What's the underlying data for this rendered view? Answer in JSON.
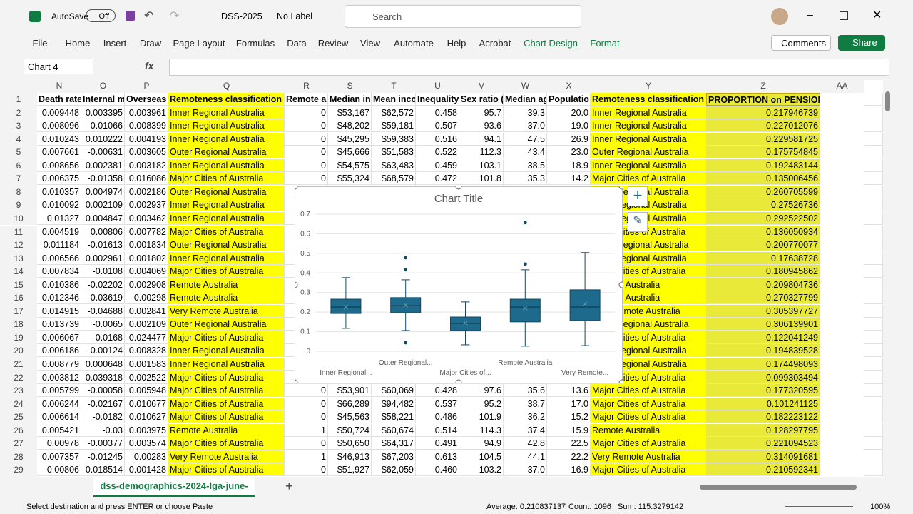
{
  "titlebar": {
    "autosave": "AutoSave",
    "toggle": "Off",
    "filename": "DSS-2025",
    "label": "No Label",
    "search": "Search"
  },
  "ribbon": {
    "tabs": [
      "File",
      "Home",
      "Insert",
      "Draw",
      "Page Layout",
      "Formulas",
      "Data",
      "Review",
      "View",
      "Automate",
      "Help",
      "Acrobat",
      "Chart Design",
      "Format"
    ],
    "comments": "Comments",
    "share": "Share"
  },
  "formula_bar": {
    "name_box": "Chart 4",
    "fx": "fx"
  },
  "grid": {
    "columns": [
      "N",
      "O",
      "P",
      "Q",
      "R",
      "S",
      "T",
      "U",
      "V",
      "W",
      "X",
      "Y",
      "Z",
      "AA"
    ],
    "rows": [
      [
        "1",
        "Death rate",
        "Internal m",
        "Overseas m",
        "Remoteness classification",
        "Remote ar",
        "Median in",
        "Mean inco",
        "Inequality",
        "Sex ratio (",
        "Median ag",
        "Populatio",
        "Remoteness classification",
        "PROPORTION on PENSIONS"
      ],
      [
        "2",
        "0.009448",
        "0.003395",
        "0.003961",
        "Inner Regional Australia",
        "0",
        "$53,167",
        "$62,572",
        "0.458",
        "95.7",
        "39.3",
        "20.0",
        "Inner Regional Australia",
        "0.217946739"
      ],
      [
        "3",
        "0.008096",
        "-0.01066",
        "0.008399",
        "Inner Regional Australia",
        "0",
        "$48,202",
        "$59,181",
        "0.507",
        "93.6",
        "37.0",
        "19.0",
        "Inner Regional Australia",
        "0.227012076"
      ],
      [
        "4",
        "0.010243",
        "0.010222",
        "0.004193",
        "Inner Regional Australia",
        "0",
        "$45,295",
        "$59,383",
        "0.516",
        "94.1",
        "47.5",
        "26.9",
        "Inner Regional Australia",
        "0.229581725"
      ],
      [
        "5",
        "0.007661",
        "-0.00631",
        "0.003605",
        "Outer Regional Australia",
        "0",
        "$45,666",
        "$51,583",
        "0.522",
        "112.3",
        "43.4",
        "23.0",
        "Outer Regional Australia",
        "0.175754845"
      ],
      [
        "6",
        "0.008656",
        "0.002381",
        "0.003182",
        "Inner Regional Australia",
        "0",
        "$54,575",
        "$63,483",
        "0.459",
        "103.1",
        "38.5",
        "18.9",
        "Inner Regional Australia",
        "0.192483144"
      ],
      [
        "7",
        "0.006375",
        "-0.01358",
        "0.016086",
        "Major Cities of Australia",
        "0",
        "$55,324",
        "$68,579",
        "0.472",
        "101.8",
        "35.3",
        "14.2",
        "Major Cities of Australia",
        "0.135006456"
      ],
      [
        "8",
        "0.010357",
        "0.004974",
        "0.002186",
        "Outer Regional Australia",
        null,
        null,
        null,
        null,
        null,
        null,
        null,
        "Outer Regional Australia",
        "0.260705599"
      ],
      [
        "9",
        "0.010092",
        "0.002109",
        "0.002937",
        "Inner Regional Australia",
        null,
        null,
        null,
        null,
        null,
        null,
        null,
        "Inner Regional Australia",
        "0.27526736"
      ],
      [
        "10",
        "0.01327",
        "0.004847",
        "0.003462",
        "Inner Regional Australia",
        null,
        null,
        null,
        null,
        null,
        null,
        null,
        "Inner Regional Australia",
        "0.292522502"
      ],
      [
        "11",
        "0.004519",
        "0.00806",
        "0.007782",
        "Major Cities of Australia",
        null,
        null,
        null,
        null,
        null,
        null,
        null,
        "Major Cities of Australia",
        "0.136050934"
      ],
      [
        "12",
        "0.011184",
        "-0.01613",
        "0.001834",
        "Outer Regional Australia",
        null,
        null,
        null,
        null,
        null,
        null,
        null,
        "Outer Regional Australia",
        "0.200770077"
      ],
      [
        "13",
        "0.006566",
        "0.002961",
        "0.001802",
        "Inner Regional Australia",
        null,
        null,
        null,
        null,
        null,
        null,
        null,
        "Inner Regional Australia",
        "0.17638728"
      ],
      [
        "14",
        "0.007834",
        "-0.0108",
        "0.004069",
        "Major Cities of Australia",
        null,
        null,
        null,
        null,
        null,
        null,
        null,
        "Major Cities of Australia",
        "0.180945862"
      ],
      [
        "15",
        "0.010386",
        "-0.02202",
        "0.002908",
        "Remote Australia",
        null,
        null,
        null,
        null,
        null,
        null,
        null,
        "Remote Australia",
        "0.209804736"
      ],
      [
        "16",
        "0.012346",
        "-0.03619",
        "0.00298",
        "Remote Australia",
        null,
        null,
        null,
        null,
        null,
        null,
        null,
        "Remote Australia",
        "0.270327799"
      ],
      [
        "17",
        "0.014915",
        "-0.04688",
        "0.002841",
        "Very Remote Australia",
        null,
        null,
        null,
        null,
        null,
        null,
        null,
        "Very Remote Australia",
        "0.305397727"
      ],
      [
        "18",
        "0.013739",
        "-0.0065",
        "0.002109",
        "Outer Regional Australia",
        null,
        null,
        null,
        null,
        null,
        null,
        null,
        "Outer Regional Australia",
        "0.306139901"
      ],
      [
        "19",
        "0.006067",
        "-0.0168",
        "0.024477",
        "Major Cities of Australia",
        null,
        null,
        null,
        null,
        null,
        null,
        null,
        "Major Cities of Australia",
        "0.122041249"
      ],
      [
        "20",
        "0.006186",
        "-0.00124",
        "0.008328",
        "Inner Regional Australia",
        null,
        null,
        null,
        null,
        null,
        null,
        null,
        "Inner Regional Australia",
        "0.194839528"
      ],
      [
        "21",
        "0.008779",
        "0.000648",
        "0.001583",
        "Inner Regional Australia",
        null,
        null,
        null,
        null,
        null,
        null,
        null,
        "Inner Regional Australia",
        "0.174498093"
      ],
      [
        "22",
        "0.003812",
        "0.039318",
        "0.002522",
        "Major Cities of Australia",
        null,
        null,
        null,
        null,
        null,
        null,
        null,
        "Major Cities of Australia",
        "0.099303494"
      ],
      [
        "23",
        "0.005799",
        "-0.00058",
        "0.005948",
        "Major Cities of Australia",
        "0",
        "$53,901",
        "$60,069",
        "0.428",
        "97.6",
        "35.6",
        "13.6",
        "Major Cities of Australia",
        "0.177320595"
      ],
      [
        "24",
        "0.006244",
        "-0.02167",
        "0.010677",
        "Major Cities of Australia",
        "0",
        "$66,289",
        "$94,482",
        "0.537",
        "95.2",
        "38.7",
        "17.0",
        "Major Cities of Australia",
        "0.101241125"
      ],
      [
        "25",
        "0.006614",
        "-0.0182",
        "0.010627",
        "Major Cities of Australia",
        "0",
        "$45,563",
        "$58,221",
        "0.486",
        "101.9",
        "36.2",
        "15.2",
        "Major Cities of Australia",
        "0.182223122"
      ],
      [
        "26",
        "0.005421",
        "-0.03",
        "0.003975",
        "Remote Australia",
        "1",
        "$50,724",
        "$60,674",
        "0.514",
        "114.3",
        "37.4",
        "15.9",
        "Remote Australia",
        "0.128297795"
      ],
      [
        "27",
        "0.00978",
        "-0.00377",
        "0.003574",
        "Major Cities of Australia",
        "0",
        "$50,650",
        "$64,317",
        "0.491",
        "94.9",
        "42.8",
        "22.5",
        "Major Cities of Australia",
        "0.221094523"
      ],
      [
        "28",
        "0.007357",
        "-0.01245",
        "0.00283",
        "Very Remote Australia",
        "1",
        "$46,913",
        "$67,203",
        "0.613",
        "104.5",
        "44.1",
        "22.2",
        "Very Remote Australia",
        "0.314091681"
      ],
      [
        "29",
        "0.00806",
        "0.018514",
        "0.001428",
        "Major Cities of Australia",
        "0",
        "$51,927",
        "$62,059",
        "0.460",
        "103.2",
        "37.0",
        "16.9",
        "Major Cities of Australia",
        "0.210592341"
      ]
    ]
  },
  "chart": {
    "type": "box",
    "title": "Chart Title",
    "color": "#1d6a8c",
    "categories": [
      "Inner Regional...",
      "Outer Regional...",
      "Major Cities of...",
      "Remote Australia",
      "Very Remote..."
    ],
    "ylim": [
      0,
      0.7
    ],
    "yticks": [
      0,
      0.1,
      0.2,
      0.3,
      0.4,
      0.5,
      0.6,
      0.7
    ],
    "grid": true,
    "boxes": [
      {
        "whisker_low": 0.117,
        "q1": 0.193,
        "median": 0.226,
        "q3": 0.266,
        "whisker_high": 0.376,
        "mean": 0.225,
        "outliers": []
      },
      {
        "whisker_low": 0.106,
        "q1": 0.197,
        "median": 0.233,
        "q3": 0.274,
        "whisker_high": 0.365,
        "mean": 0.236,
        "outliers": [
          0.478,
          0.416,
          0.044
        ]
      },
      {
        "whisker_low": 0.033,
        "q1": 0.106,
        "median": 0.142,
        "q3": 0.175,
        "whisker_high": 0.252,
        "mean": 0.145,
        "outliers": []
      },
      {
        "whisker_low": 0.026,
        "q1": 0.15,
        "median": 0.226,
        "q3": 0.266,
        "whisker_high": 0.416,
        "mean": 0.22,
        "outliers": [
          0.445,
          0.657
        ]
      },
      {
        "whisker_low": 0.029,
        "q1": 0.157,
        "median": 0.226,
        "q3": 0.314,
        "whisker_high": 0.504,
        "mean": 0.24,
        "outliers": []
      }
    ]
  },
  "sheet_tab": "dss-demographics-2024-lga-june-",
  "status": {
    "message": "Select destination and press ENTER or choose Paste",
    "average": "Average: 0.210837137",
    "count": "Count: 1096",
    "sum": "Sum: 115.3279142",
    "zoom": "100%"
  }
}
